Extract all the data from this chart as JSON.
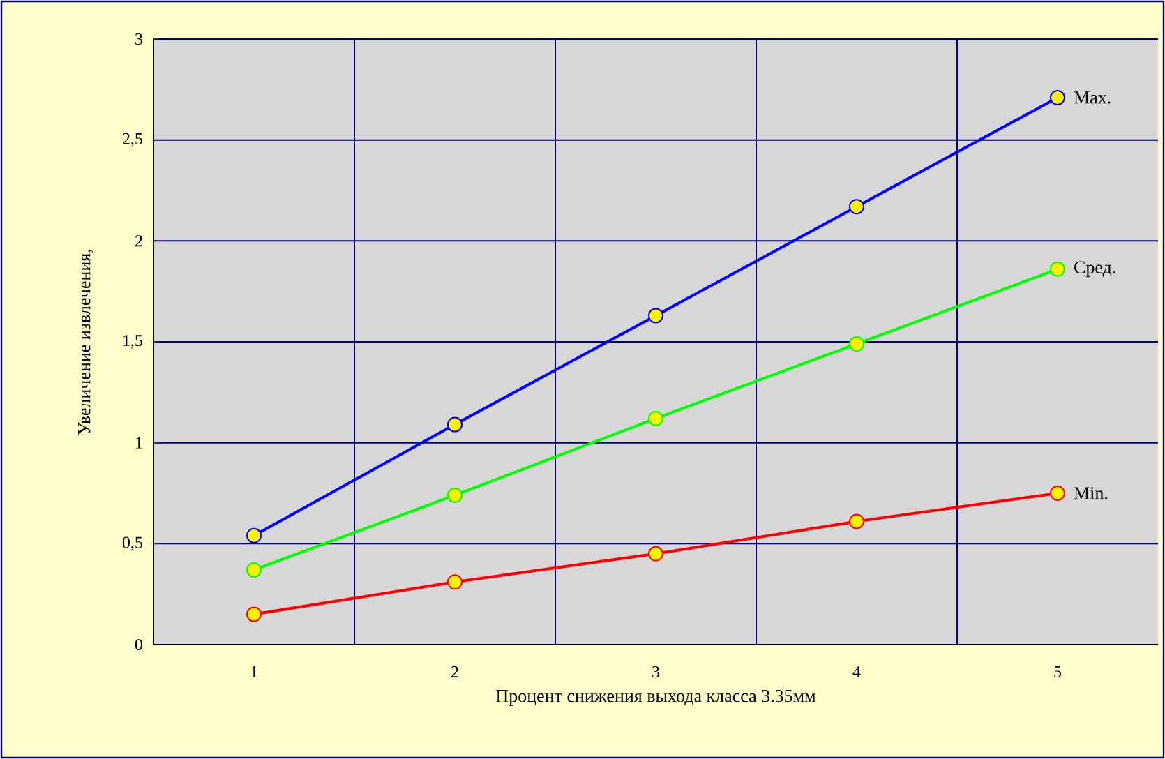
{
  "chart_data": {
    "type": "line",
    "xlabel": "Процент снижения выхода класса 3.35мм",
    "ylabel": "Увеличение извлечения,",
    "categories": [
      "1",
      "2",
      "3",
      "4",
      "5"
    ],
    "series": [
      {
        "name": "Max.",
        "color": "#0000ff",
        "values": [
          0.54,
          1.09,
          1.63,
          2.17,
          2.71
        ]
      },
      {
        "name": "Сред.",
        "color": "#00ff00",
        "values": [
          0.37,
          0.74,
          1.12,
          1.49,
          1.86
        ]
      },
      {
        "name": "Min.",
        "color": "#ff0000",
        "values": [
          0.15,
          0.31,
          0.45,
          0.61,
          0.75
        ]
      }
    ],
    "ylim": [
      0,
      3
    ],
    "yticks": [
      0,
      {
        "value": 0.5,
        "label": "0,5"
      },
      1,
      {
        "value": 1.5,
        "label": "1,5"
      },
      2,
      {
        "value": 2.5,
        "label": "2,5"
      },
      3
    ],
    "grid": true,
    "marker": "circle",
    "line_style": "solid"
  }
}
